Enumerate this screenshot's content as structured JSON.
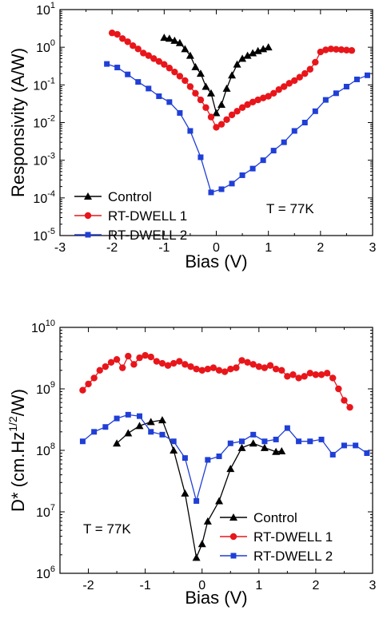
{
  "colors": {
    "control": "#000000",
    "dwell1": "#e8161b",
    "dwell2": "#1f3fd6"
  },
  "chart_data": [
    {
      "type": "line",
      "xlabel": "Bias (V)",
      "ylabel": "Responsivity (A/W)",
      "xlim": [
        -3,
        3
      ],
      "ylim_log10": [
        -5,
        1
      ],
      "yscale": "log",
      "xticks": [
        "-3",
        "-2",
        "-1",
        "0",
        "1",
        "2",
        "3"
      ],
      "yticks": [
        {
          "base": "10",
          "exp": "-5"
        },
        {
          "base": "10",
          "exp": "-4"
        },
        {
          "base": "10",
          "exp": "-3"
        },
        {
          "base": "10",
          "exp": "-2"
        },
        {
          "base": "10",
          "exp": "-1"
        },
        {
          "base": "10",
          "exp": "0"
        },
        {
          "base": "10",
          "exp": "1"
        }
      ],
      "annotation": "T = 77K",
      "legend": "lower-left",
      "series": [
        {
          "name": "Control",
          "marker": "triangle",
          "color_key": "control",
          "x": [
            -1.0,
            -0.9,
            -0.8,
            -0.7,
            -0.6,
            -0.5,
            -0.4,
            -0.3,
            -0.2,
            -0.1,
            0.0,
            0.1,
            0.2,
            0.3,
            0.4,
            0.5,
            0.6,
            0.7,
            0.8,
            0.9,
            1.0
          ],
          "y": [
            1.8,
            1.7,
            1.5,
            1.3,
            0.9,
            0.6,
            0.3,
            0.2,
            0.09,
            0.06,
            0.018,
            0.03,
            0.08,
            0.18,
            0.35,
            0.5,
            0.6,
            0.7,
            0.8,
            0.9,
            1.0
          ]
        },
        {
          "name": "RT-DWELL 1",
          "marker": "circle",
          "color_key": "dwell1",
          "x": [
            -2.0,
            -1.9,
            -1.8,
            -1.7,
            -1.6,
            -1.5,
            -1.4,
            -1.3,
            -1.2,
            -1.1,
            -1.0,
            -0.9,
            -0.8,
            -0.7,
            -0.6,
            -0.5,
            -0.4,
            -0.3,
            -0.2,
            -0.1,
            0.0,
            0.1,
            0.2,
            0.3,
            0.4,
            0.5,
            0.6,
            0.7,
            0.8,
            0.9,
            1.0,
            1.1,
            1.2,
            1.3,
            1.4,
            1.5,
            1.6,
            1.7,
            1.8,
            1.9,
            2.0,
            2.1,
            2.2,
            2.3,
            2.4,
            2.5,
            2.6
          ],
          "y": [
            2.4,
            2.2,
            1.7,
            1.4,
            1.1,
            0.9,
            0.7,
            0.6,
            0.5,
            0.42,
            0.35,
            0.28,
            0.22,
            0.17,
            0.13,
            0.09,
            0.06,
            0.04,
            0.025,
            0.014,
            0.0075,
            0.009,
            0.012,
            0.016,
            0.02,
            0.025,
            0.03,
            0.035,
            0.04,
            0.045,
            0.05,
            0.06,
            0.075,
            0.09,
            0.11,
            0.13,
            0.16,
            0.2,
            0.26,
            0.4,
            0.75,
            0.85,
            0.9,
            0.88,
            0.86,
            0.84,
            0.82
          ]
        },
        {
          "name": "RT-DWELL 2",
          "marker": "square",
          "color_key": "dwell2",
          "x": [
            -2.1,
            -1.9,
            -1.7,
            -1.5,
            -1.3,
            -1.1,
            -0.9,
            -0.7,
            -0.5,
            -0.3,
            -0.1,
            0.1,
            0.3,
            0.5,
            0.7,
            0.9,
            1.1,
            1.3,
            1.5,
            1.7,
            1.9,
            2.1,
            2.3,
            2.5,
            2.7,
            2.9
          ],
          "y": [
            0.36,
            0.29,
            0.19,
            0.12,
            0.08,
            0.05,
            0.035,
            0.018,
            0.006,
            0.0012,
            0.00014,
            0.00017,
            0.00024,
            0.0004,
            0.0006,
            0.001,
            0.0018,
            0.003,
            0.006,
            0.01,
            0.02,
            0.04,
            0.06,
            0.09,
            0.14,
            0.18
          ]
        }
      ]
    },
    {
      "type": "line",
      "xlabel": "Bias (V)",
      "ylabel": {
        "base": "D* (cm.Hz",
        "sup": "1/2",
        "tail": "/W)"
      },
      "xlim": [
        -2.5,
        3
      ],
      "ylim_log10": [
        6,
        10
      ],
      "yscale": "log",
      "xticks": [
        "-2",
        "-1",
        "0",
        "1",
        "2",
        "3"
      ],
      "yticks": [
        {
          "base": "10",
          "exp": "6"
        },
        {
          "base": "10",
          "exp": "7"
        },
        {
          "base": "10",
          "exp": "8"
        },
        {
          "base": "10",
          "exp": "9"
        },
        {
          "base": "10",
          "exp": "10"
        }
      ],
      "annotation": "T = 77K",
      "legend": "lower-right",
      "series": [
        {
          "name": "Control",
          "marker": "triangle",
          "color_key": "control",
          "x": [
            -1.5,
            -1.3,
            -1.1,
            -0.9,
            -0.7,
            -0.5,
            -0.3,
            -0.1,
            0.0,
            0.1,
            0.3,
            0.5,
            0.7,
            0.9,
            1.1,
            1.3,
            1.4
          ],
          "y": [
            130000000,
            190000000,
            250000000,
            290000000,
            310000000,
            100000000,
            20000000,
            1800000,
            3000000,
            7000000,
            15000000,
            50000000,
            110000000,
            130000000,
            110000000,
            95000000,
            97000000
          ]
        },
        {
          "name": "RT-DWELL 1",
          "marker": "circle",
          "color_key": "dwell1",
          "x": [
            -2.1,
            -2.0,
            -1.9,
            -1.8,
            -1.7,
            -1.6,
            -1.5,
            -1.4,
            -1.3,
            -1.2,
            -1.1,
            -1.0,
            -0.9,
            -0.8,
            -0.7,
            -0.6,
            -0.5,
            -0.4,
            -0.3,
            -0.2,
            -0.1,
            0.0,
            0.1,
            0.2,
            0.3,
            0.4,
            0.5,
            0.6,
            0.7,
            0.8,
            0.9,
            1.0,
            1.1,
            1.2,
            1.3,
            1.4,
            1.5,
            1.6,
            1.7,
            1.8,
            1.9,
            2.0,
            2.1,
            2.2,
            2.3,
            2.4,
            2.5,
            2.6
          ],
          "y": [
            950000000,
            1200000000,
            1500000000,
            2000000000,
            2300000000,
            2700000000,
            3000000000,
            2200000000,
            3400000000,
            2500000000,
            3200000000,
            3500000000,
            3300000000,
            2800000000,
            2600000000,
            2400000000,
            2600000000,
            2800000000,
            2500000000,
            2300000000,
            2100000000,
            2000000000,
            2100000000,
            2200000000,
            2000000000,
            1900000000,
            2100000000,
            2200000000,
            2900000000,
            2700000000,
            2500000000,
            2300000000,
            2200000000,
            2400000000,
            2100000000,
            2000000000,
            1600000000,
            1700000000,
            1500000000,
            1600000000,
            1800000000,
            1700000000,
            1700000000,
            1800000000,
            1500000000,
            1000000000,
            650000000,
            500000000
          ]
        },
        {
          "name": "RT-DWELL 2",
          "marker": "square",
          "color_key": "dwell2",
          "x": [
            -2.1,
            -1.9,
            -1.7,
            -1.5,
            -1.3,
            -1.1,
            -0.9,
            -0.7,
            -0.5,
            -0.3,
            -0.1,
            0.1,
            0.3,
            0.5,
            0.7,
            0.9,
            1.1,
            1.3,
            1.5,
            1.7,
            1.9,
            2.1,
            2.3,
            2.5,
            2.7,
            2.9
          ],
          "y": [
            140000000,
            200000000,
            240000000,
            330000000,
            380000000,
            360000000,
            200000000,
            180000000,
            140000000,
            75000000,
            15000000,
            70000000,
            80000000,
            130000000,
            140000000,
            180000000,
            140000000,
            150000000,
            230000000,
            140000000,
            140000000,
            150000000,
            85000000,
            120000000,
            120000000,
            90000000
          ]
        }
      ]
    }
  ]
}
